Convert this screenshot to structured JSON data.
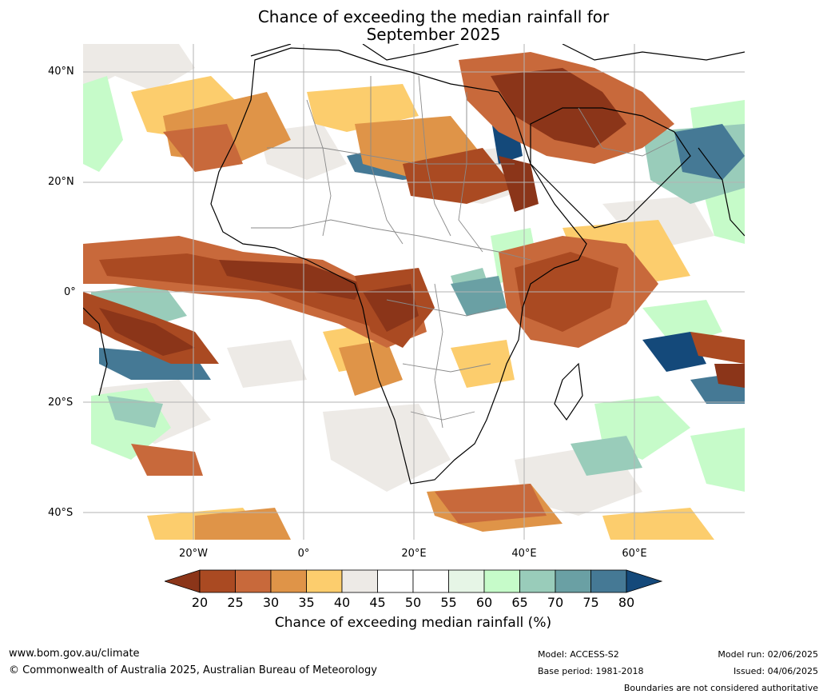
{
  "title": {
    "line1": "Chance of exceeding the median rainfall for",
    "line2": "September 2025"
  },
  "map": {
    "lat_labels": [
      "40°N",
      "20°N",
      "0°",
      "20°S",
      "40°S"
    ],
    "lon_labels": [
      "20°W",
      "0°",
      "20°E",
      "40°E",
      "60°E"
    ],
    "extent": {
      "lon_min": -40,
      "lon_max": 80,
      "lat_min": -45,
      "lat_max": 45
    }
  },
  "legend": {
    "ticks": [
      "20",
      "25",
      "30",
      "35",
      "40",
      "45",
      "50",
      "55",
      "60",
      "65",
      "70",
      "75",
      "80"
    ],
    "colors": [
      "#8b3519",
      "#aa4a22",
      "#c8693b",
      "#df9448",
      "#fccd6d",
      "#edeae6",
      "#ffffff",
      "#ffffff",
      "#e6f5e6",
      "#c6fbc9",
      "#99ccba",
      "#6aa0a4",
      "#457995",
      "#14497a"
    ],
    "label": "Chance of exceeding median rainfall (%)"
  },
  "footer": {
    "url": "www.bom.gov.au/climate",
    "copyright": "© Commonwealth of Australia 2025, Australian Bureau of Meteorology",
    "model": "Model: ACCESS-S2",
    "base_period": "Base period: 1981-2018",
    "model_run": "Model run: 02/06/2025",
    "issued": "Issued: 04/06/2025",
    "disclaimer": "Boundaries are not considered authoritative"
  }
}
